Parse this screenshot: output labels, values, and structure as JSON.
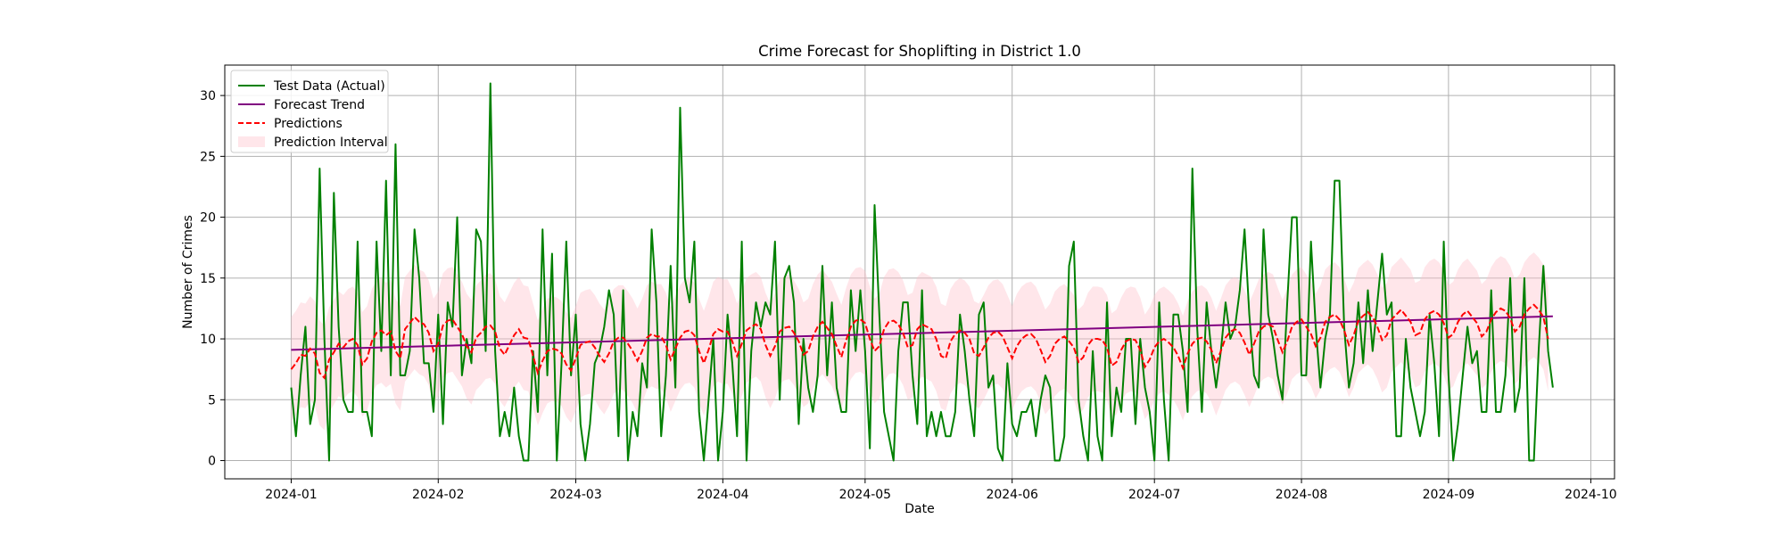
{
  "chart_data": {
    "type": "line",
    "title": "Crime Forecast for Shoplifting in District 1.0",
    "xlabel": "Date",
    "ylabel": "Number of Crimes",
    "x_start": "2024-01-01",
    "x_end": "2024-09-23",
    "xlim": [
      "2023-12-18",
      "2024-10-06"
    ],
    "ylim": [
      -1.5,
      32.5
    ],
    "x_ticks": [
      {
        "date": "2024-01-01",
        "label": "2024-01"
      },
      {
        "date": "2024-02-01",
        "label": "2024-02"
      },
      {
        "date": "2024-03-01",
        "label": "2024-03"
      },
      {
        "date": "2024-04-01",
        "label": "2024-04"
      },
      {
        "date": "2024-05-01",
        "label": "2024-05"
      },
      {
        "date": "2024-06-01",
        "label": "2024-06"
      },
      {
        "date": "2024-07-01",
        "label": "2024-07"
      },
      {
        "date": "2024-08-01",
        "label": "2024-08"
      },
      {
        "date": "2024-09-01",
        "label": "2024-09"
      },
      {
        "date": "2024-10-01",
        "label": "2024-10"
      }
    ],
    "y_ticks": [
      0,
      5,
      10,
      15,
      20,
      25,
      30
    ],
    "grid": true,
    "legend_position": "top-left",
    "series": [
      {
        "name": "Test Data (Actual)",
        "style": "solid",
        "color": "#008000",
        "values": [
          6,
          2,
          7,
          11,
          3,
          5,
          24,
          10,
          0,
          22,
          11,
          5,
          4,
          4,
          18,
          4,
          4,
          2,
          18,
          9,
          23,
          7,
          26,
          7,
          7,
          9,
          19,
          15,
          8,
          8,
          4,
          12,
          3,
          13,
          11,
          20,
          7,
          10,
          8,
          19,
          18,
          9,
          31,
          9,
          2,
          4,
          2,
          6,
          2,
          0,
          0,
          9,
          4,
          19,
          7,
          17,
          0,
          8,
          18,
          7,
          12,
          3,
          0,
          3,
          8,
          9,
          11,
          14,
          12,
          2,
          14,
          0,
          4,
          2,
          8,
          6,
          19,
          13,
          2,
          7,
          16,
          6,
          29,
          15,
          13,
          18,
          4,
          0,
          5,
          10,
          0,
          4,
          12,
          8,
          2,
          18,
          0,
          9,
          13,
          11,
          13,
          12,
          18,
          5,
          15,
          16,
          13,
          3,
          10,
          6,
          4,
          7,
          16,
          7,
          13,
          6,
          4,
          4,
          14,
          9,
          14,
          9,
          1,
          21,
          12,
          4,
          2,
          0,
          9,
          13,
          13,
          7,
          3,
          14,
          2,
          4,
          2,
          4,
          2,
          2,
          4,
          12,
          9,
          5,
          2,
          12,
          13,
          6,
          7,
          1,
          0,
          8,
          3,
          2,
          4,
          4,
          5,
          2,
          5,
          7,
          6,
          0,
          0,
          2,
          16,
          18,
          5,
          2,
          0,
          9,
          2,
          0,
          13,
          2,
          6,
          4,
          10,
          10,
          3,
          10,
          6,
          4,
          0,
          13,
          5,
          0,
          12,
          12,
          9,
          4,
          24,
          11,
          4,
          13,
          9,
          6,
          9,
          13,
          10,
          11,
          14,
          19,
          12,
          7,
          6,
          19,
          12,
          10,
          7,
          5,
          13,
          20,
          20,
          7,
          7,
          18,
          11,
          6,
          10,
          12,
          23,
          23,
          11,
          6,
          8,
          13,
          8,
          14,
          9,
          13,
          17,
          12,
          13,
          2,
          2,
          10,
          6,
          4,
          2,
          4,
          12,
          8,
          2,
          18,
          7,
          0,
          3,
          7,
          11,
          8,
          9,
          4,
          4,
          14,
          4,
          4,
          7,
          15,
          4,
          6,
          15,
          0,
          0,
          9,
          16,
          9,
          6
        ]
      },
      {
        "name": "Forecast Trend",
        "style": "solid",
        "color": "#800080",
        "start_value": 9.1,
        "end_value": 11.85
      },
      {
        "name": "Predictions",
        "style": "dashed",
        "color": "#ff0000",
        "values": [
          7.5,
          8.0,
          8.7,
          8.6,
          9.2,
          8.8,
          7.2,
          6.8,
          8.3,
          8.9,
          9.6,
          9.3,
          9.8,
          10.0,
          9.5,
          7.9,
          8.4,
          9.8,
          10.5,
          10.7,
          10.3,
          10.6,
          9.0,
          8.4,
          10.8,
          11.3,
          11.8,
          11.4,
          11.2,
          10.5,
          9.0,
          9.6,
          11.1,
          11.5,
          11.6,
          11.0,
          10.4,
          9.4,
          8.9,
          10.1,
          10.5,
          11.0,
          11.1,
          10.6,
          9.2,
          8.7,
          9.5,
          10.3,
          10.8,
          10.1,
          10.0,
          8.6,
          7.2,
          8.2,
          9.0,
          9.2,
          9.1,
          8.8,
          7.9,
          7.4,
          8.4,
          9.5,
          9.7,
          9.8,
          9.3,
          8.6,
          8.1,
          8.8,
          9.8,
          10.1,
          10.1,
          9.6,
          9.0,
          8.2,
          9.0,
          10.1,
          10.4,
          10.2,
          10.2,
          9.5,
          8.3,
          9.2,
          10.1,
          10.6,
          10.7,
          10.3,
          9.0,
          8.0,
          9.1,
          10.4,
          10.8,
          10.6,
          10.6,
          9.8,
          8.6,
          9.6,
          10.7,
          11.0,
          11.2,
          10.8,
          9.5,
          8.6,
          9.4,
          10.6,
          10.9,
          11.0,
          10.5,
          9.8,
          8.7,
          9.0,
          10.2,
          11.0,
          11.4,
          10.9,
          10.4,
          9.4,
          8.5,
          9.9,
          11.0,
          11.5,
          11.6,
          11.3,
          10.0,
          9.0,
          9.4,
          10.8,
          11.4,
          11.5,
          11.2,
          10.5,
          9.3,
          9.5,
          10.8,
          11.2,
          11.0,
          10.8,
          10.0,
          8.6,
          8.4,
          9.8,
          10.4,
          10.7,
          10.5,
          10.0,
          8.8,
          8.6,
          9.3,
          10.1,
          10.5,
          10.6,
          10.2,
          9.3,
          8.4,
          9.4,
          10.0,
          10.3,
          10.4,
          10.0,
          9.1,
          8.1,
          8.6,
          9.6,
          10.0,
          10.2,
          9.8,
          9.3,
          8.1,
          8.5,
          9.5,
          10.0,
          10.0,
          9.9,
          9.3,
          7.8,
          8.1,
          9.1,
          9.8,
          10.0,
          9.9,
          9.1,
          7.7,
          8.3,
          9.3,
          9.8,
          10.0,
          9.7,
          9.3,
          8.6,
          7.6,
          8.8,
          9.6,
          10.0,
          10.1,
          9.8,
          9.1,
          8.0,
          9.0,
          10.1,
          10.6,
          10.8,
          10.5,
          9.7,
          8.7,
          9.6,
          10.6,
          11.0,
          11.2,
          11.0,
          9.9,
          8.9,
          9.8,
          11.0,
          11.4,
          11.6,
          11.0,
          10.4,
          9.4,
          10.1,
          11.4,
          11.8,
          12.0,
          11.6,
          10.7,
          9.5,
          10.3,
          11.5,
          11.9,
          12.2,
          11.8,
          11.0,
          9.9,
          10.3,
          11.6,
          12.0,
          12.4,
          11.9,
          11.4,
          10.3,
          10.5,
          11.6,
          12.1,
          12.3,
          12.0,
          11.3,
          10.1,
          10.4,
          11.4,
          12.0,
          12.3,
          11.8,
          11.3,
          10.2,
          10.6,
          11.6,
          12.2,
          12.5,
          12.3,
          11.7,
          10.6,
          11.0,
          12.0,
          12.5,
          12.8,
          12.4,
          11.8,
          10.0
        ]
      },
      {
        "name": "Prediction Interval",
        "style": "band",
        "color": "#ffc0cb",
        "half_width": 4.3
      }
    ]
  }
}
